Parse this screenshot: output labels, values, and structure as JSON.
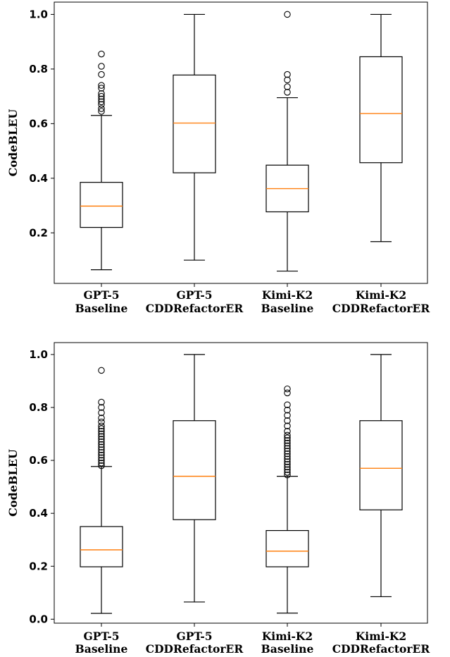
{
  "chart_data": [
    {
      "type": "box",
      "ylabel": "CodeBLEU",
      "ylim": [
        0.015,
        1.045
      ],
      "yticks": [
        0.2,
        0.4,
        0.6,
        0.8,
        1.0
      ],
      "ytick_labels": [
        "0.2",
        "0.4",
        "0.6",
        "0.8",
        "1.0"
      ],
      "categories": [
        [
          "GPT-5",
          "Baseline"
        ],
        [
          "GPT-5",
          "CDDRefactorER"
        ],
        [
          "Kimi-K2",
          "Baseline"
        ],
        [
          "Kimi-K2",
          "CDDRefactorER"
        ]
      ],
      "boxes": [
        {
          "whisker_low": 0.065,
          "q1": 0.22,
          "median": 0.298,
          "q3": 0.385,
          "whisker_high": 0.63,
          "outliers": [
            0.645,
            0.655,
            0.67,
            0.68,
            0.69,
            0.7,
            0.71,
            0.73,
            0.74,
            0.78,
            0.81,
            0.855
          ]
        },
        {
          "whisker_low": 0.1,
          "q1": 0.42,
          "median": 0.602,
          "q3": 0.778,
          "whisker_high": 1.0,
          "outliers": []
        },
        {
          "whisker_low": 0.06,
          "q1": 0.277,
          "median": 0.362,
          "q3": 0.448,
          "whisker_high": 0.695,
          "outliers": [
            0.715,
            0.735,
            0.76,
            0.78,
            1.0
          ]
        },
        {
          "whisker_low": 0.168,
          "q1": 0.457,
          "median": 0.637,
          "q3": 0.845,
          "whisker_high": 1.0,
          "outliers": []
        }
      ],
      "colors": {
        "box": "#000000",
        "median": "#ff7f0e"
      }
    },
    {
      "type": "box",
      "ylabel": "CodeBLEU",
      "ylim": [
        -0.015,
        1.045
      ],
      "yticks": [
        0.0,
        0.2,
        0.4,
        0.6,
        0.8,
        1.0
      ],
      "ytick_labels": [
        "0.0",
        "0.2",
        "0.4",
        "0.6",
        "0.8",
        "1.0"
      ],
      "categories": [
        [
          "GPT-5",
          "Baseline"
        ],
        [
          "GPT-5",
          "CDDRefactorER"
        ],
        [
          "Kimi-K2",
          "Baseline"
        ],
        [
          "Kimi-K2",
          "CDDRefactorER"
        ]
      ],
      "boxes": [
        {
          "whisker_low": 0.022,
          "q1": 0.198,
          "median": 0.262,
          "q3": 0.35,
          "whisker_high": 0.577,
          "outliers": [
            0.58,
            0.59,
            0.6,
            0.61,
            0.62,
            0.63,
            0.64,
            0.65,
            0.66,
            0.67,
            0.68,
            0.69,
            0.7,
            0.71,
            0.72,
            0.73,
            0.745,
            0.76,
            0.78,
            0.8,
            0.82,
            0.94
          ]
        },
        {
          "whisker_low": 0.065,
          "q1": 0.376,
          "median": 0.54,
          "q3": 0.75,
          "whisker_high": 1.0,
          "outliers": []
        },
        {
          "whisker_low": 0.023,
          "q1": 0.198,
          "median": 0.257,
          "q3": 0.335,
          "whisker_high": 0.54,
          "outliers": [
            0.545,
            0.555,
            0.565,
            0.575,
            0.585,
            0.595,
            0.605,
            0.615,
            0.625,
            0.635,
            0.645,
            0.655,
            0.665,
            0.675,
            0.685,
            0.695,
            0.71,
            0.73,
            0.75,
            0.77,
            0.79,
            0.81,
            0.855,
            0.87
          ]
        },
        {
          "whisker_low": 0.085,
          "q1": 0.413,
          "median": 0.57,
          "q3": 0.75,
          "whisker_high": 1.0,
          "outliers": []
        }
      ],
      "colors": {
        "box": "#000000",
        "median": "#ff7f0e"
      }
    }
  ]
}
